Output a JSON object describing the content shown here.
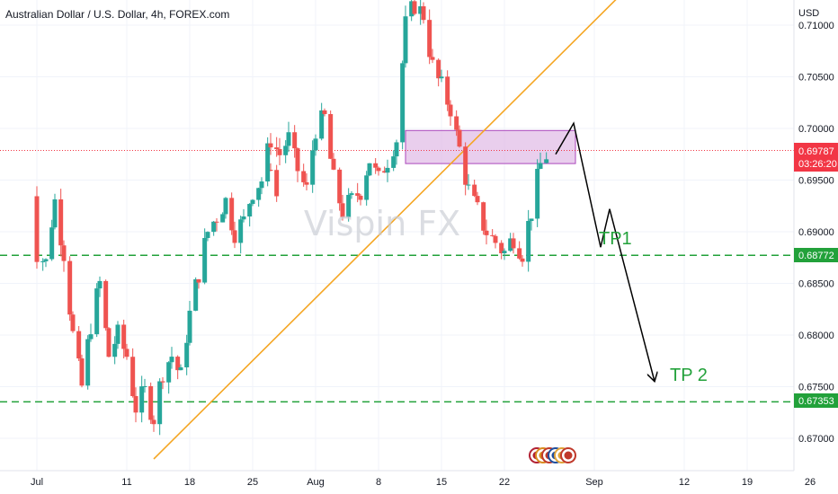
{
  "header": {
    "title": "Australian Dollar / U.S. Dollar, 4h, FOREX.com",
    "currency": "USD"
  },
  "watermark": "Vispin FX",
  "price_tag": {
    "price": "0.69787",
    "countdown": "03:26:20",
    "color": "#f23645"
  },
  "levels": [
    {
      "label": "0.68772",
      "value": 0.68772,
      "color": "#22a13a"
    },
    {
      "label": "0.67353",
      "value": 0.67353,
      "color": "#22a13a"
    }
  ],
  "annotations": {
    "tp1": "TP1",
    "tp2": "TP 2"
  },
  "colors": {
    "up": "#26a69a",
    "down": "#ef5350",
    "trendline": "#f5a623",
    "zone_fill": "#e1bee7",
    "zone_border": "#ab47bc",
    "projection": "#000000",
    "grid": "#f0f3fa"
  },
  "chart_data": {
    "type": "candlestick",
    "title": "Australian Dollar / U.S. Dollar, 4h, FOREX.com",
    "ylabel": "USD",
    "ylim": [
      0.6665,
      0.7135
    ],
    "y_ticks": [
      "0.67000",
      "0.67500",
      "0.68000",
      "0.68500",
      "0.69000",
      "0.69500",
      "0.70000",
      "0.70500",
      "0.71000"
    ],
    "x_ticks": [
      "Jul",
      "11",
      "18",
      "25",
      "Aug",
      "8",
      "15",
      "22",
      "Sep",
      "12",
      "19",
      "26"
    ],
    "last_price": 0.69787,
    "horizontal_levels": [
      0.68772,
      0.67353
    ],
    "supply_zone": [
      0.6966,
      0.6998
    ],
    "path": [
      [
        "Jun 29",
        0.696
      ],
      [
        "Jun 30",
        0.693
      ],
      [
        "Jul 1",
        0.688
      ],
      [
        "Jul 2",
        0.687
      ],
      [
        "Jul 3",
        0.693
      ],
      [
        "Jul 4",
        0.688
      ],
      [
        "Jul 5",
        0.68
      ],
      [
        "Jul 6",
        0.675
      ],
      [
        "Jul 7",
        0.681
      ],
      [
        "Jul 8",
        0.685
      ],
      [
        "Jul 9",
        0.678
      ],
      [
        "Jul 10",
        0.68
      ],
      [
        "Jul 11",
        0.678
      ],
      [
        "Jul 12",
        0.673
      ],
      [
        "Jul 13",
        0.6745
      ],
      [
        "Jul 14",
        0.672
      ],
      [
        "Jul 15",
        0.6765
      ],
      [
        "Jul 16",
        0.678
      ],
      [
        "Jul 17",
        0.676
      ],
      [
        "Jul 18",
        0.682
      ],
      [
        "Jul 19",
        0.686
      ],
      [
        "Jul 20",
        0.69
      ],
      [
        "Jul 21",
        0.6915
      ],
      [
        "Jul 22",
        0.693
      ],
      [
        "Jul 23",
        0.69
      ],
      [
        "Jul 24",
        0.691
      ],
      [
        "Jul 25",
        0.694
      ],
      [
        "Jul 26",
        0.695
      ],
      [
        "Jul 27",
        0.699
      ],
      [
        "Jul 28",
        0.6975
      ],
      [
        "Jul 29",
        0.699
      ],
      [
        "Jul 30",
        0.696
      ],
      [
        "Jul 31",
        0.694
      ],
      [
        "Aug 1",
        0.7
      ],
      [
        "Aug 2",
        0.701
      ],
      [
        "Aug 3",
        0.695
      ],
      [
        "Aug 4",
        0.692
      ],
      [
        "Aug 5",
        0.693
      ],
      [
        "Aug 6",
        0.694
      ],
      [
        "Aug 7",
        0.697
      ],
      [
        "Aug 8",
        0.695
      ],
      [
        "Aug 9",
        0.697
      ],
      [
        "Aug 10",
        0.699
      ],
      [
        "Aug 11",
        0.71
      ],
      [
        "Aug 12",
        0.712
      ],
      [
        "Aug 13",
        0.711
      ],
      [
        "Aug 14",
        0.706
      ],
      [
        "Aug 15",
        0.704
      ],
      [
        "Aug 16",
        0.702
      ],
      [
        "Aug 17",
        0.698
      ],
      [
        "Aug 18",
        0.694
      ],
      [
        "Aug 19",
        0.692
      ],
      [
        "Aug 20",
        0.69
      ],
      [
        "Aug 21",
        0.689
      ],
      [
        "Aug 22",
        0.688
      ],
      [
        "Aug 23",
        0.6895
      ],
      [
        "Aug 24",
        0.688
      ],
      [
        "Aug 25",
        0.692
      ],
      [
        "Aug 26",
        0.6965
      ],
      [
        "Aug 27",
        0.6979
      ]
    ],
    "trendline": [
      [
        "Jul 14",
        0.668
      ],
      [
        "Sep 4",
        0.713
      ]
    ],
    "projection": [
      [
        "Aug 27",
        0.6975
      ],
      [
        "Aug 29",
        0.7005
      ],
      [
        "Sep 1",
        0.6885
      ],
      [
        "Sep 2",
        0.6922
      ],
      [
        "Sep 7",
        0.6755
      ]
    ]
  }
}
